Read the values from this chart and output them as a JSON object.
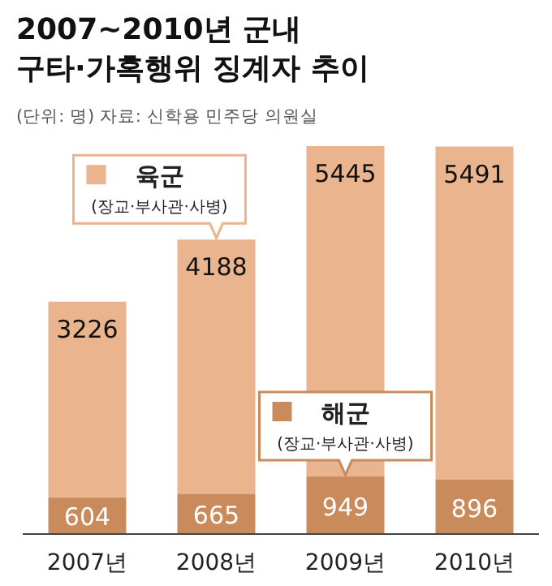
{
  "chart_data": {
    "type": "bar",
    "title": "2007~2010년 군내 구타·가혹행위 징계자 추이",
    "subtitle": "(단위: 명)  자료: 신학용 민주당 의원실",
    "categories": [
      "2007년",
      "2008년",
      "2009년",
      "2010년"
    ],
    "stacked": true,
    "data_labels": true,
    "legend": "top left",
    "series": [
      {
        "name": "해군 (장교·부사관·사병)",
        "color": "#c98b5c",
        "values": [
          604,
          665,
          949,
          896
        ]
      },
      {
        "name": "육군 (장교·부사관·사병)",
        "color": "#e9b48e",
        "values": [
          3226,
          4188,
          5445,
          5491
        ]
      }
    ]
  }
}
